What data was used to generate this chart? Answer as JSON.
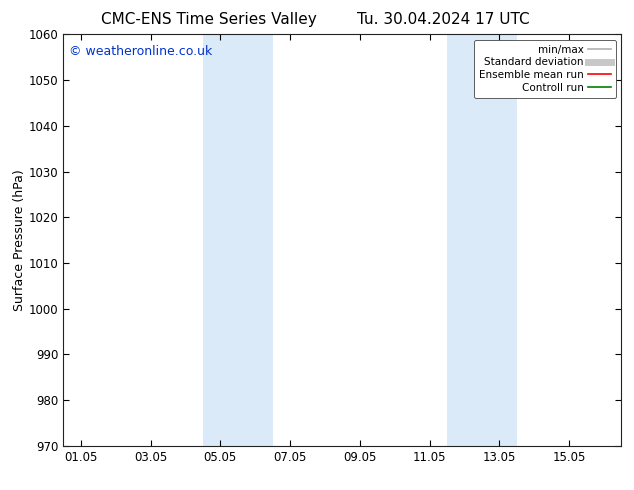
{
  "title_left": "CMC-ENS Time Series Valley",
  "title_right": "Tu. 30.04.2024 17 UTC",
  "ylabel": "Surface Pressure (hPa)",
  "ylim": [
    970,
    1060
  ],
  "yticks": [
    970,
    980,
    990,
    1000,
    1010,
    1020,
    1030,
    1040,
    1050,
    1060
  ],
  "xtick_labels": [
    "01.05",
    "03.05",
    "05.05",
    "07.05",
    "09.05",
    "11.05",
    "13.05",
    "15.05"
  ],
  "xtick_positions": [
    0,
    2,
    4,
    6,
    8,
    10,
    12,
    14
  ],
  "xlim": [
    -0.5,
    15.5
  ],
  "shaded_bands": [
    {
      "xmin": 3.5,
      "xmax": 5.5,
      "color": "#daeaf8"
    },
    {
      "xmin": 10.5,
      "xmax": 12.5,
      "color": "#daeaf8"
    }
  ],
  "watermark": "© weatheronline.co.uk",
  "watermark_color": "#0033cc",
  "background_color": "#ffffff",
  "plot_bg_color": "#ffffff",
  "legend_items": [
    {
      "label": "min/max",
      "color": "#b0b0b0",
      "lw": 1.2
    },
    {
      "label": "Standard deviation",
      "color": "#c8c8c8",
      "lw": 5
    },
    {
      "label": "Ensemble mean run",
      "color": "#ff0000",
      "lw": 1.2
    },
    {
      "label": "Controll run",
      "color": "#008000",
      "lw": 1.2
    }
  ],
  "title_fontsize": 11,
  "tick_fontsize": 8.5,
  "ylabel_fontsize": 9,
  "watermark_fontsize": 9
}
